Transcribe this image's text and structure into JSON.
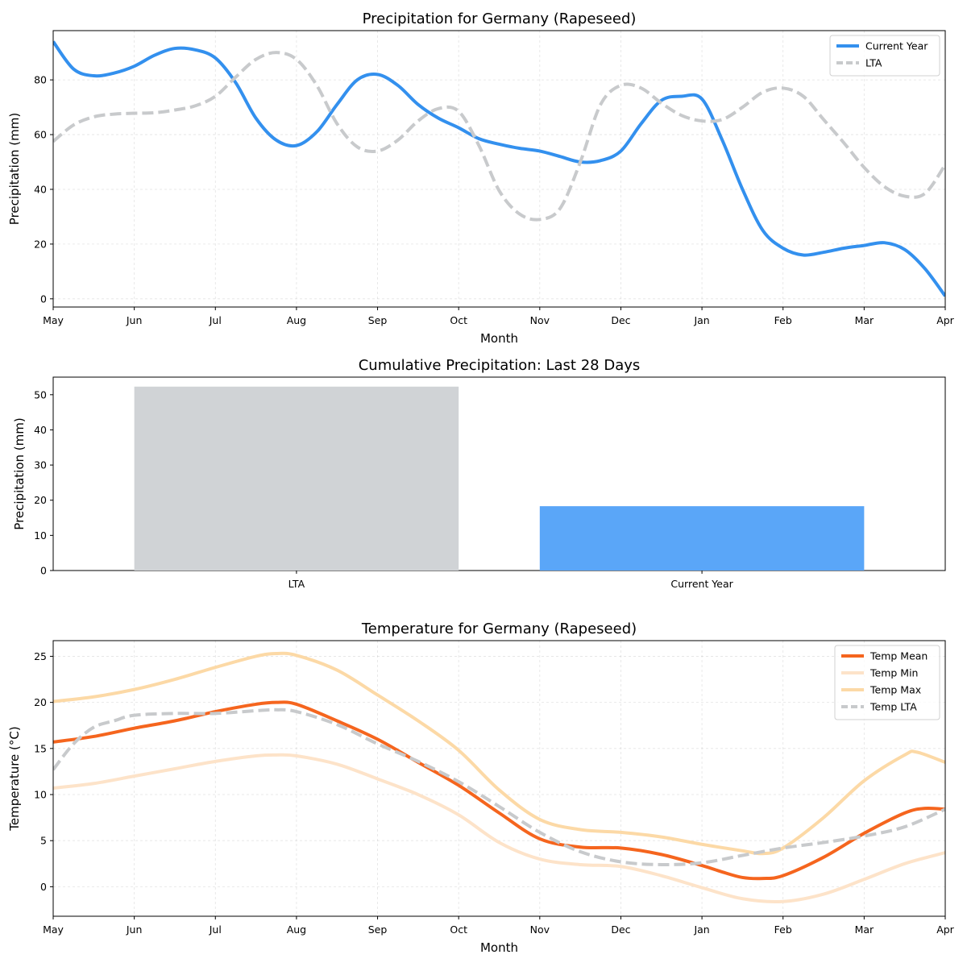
{
  "chart_data": [
    {
      "type": "line",
      "title": "Precipitation for Germany (Rapeseed)",
      "xlabel": "Month",
      "ylabel": "Precipitation (mm)",
      "x_ticks": [
        "May",
        "Jun",
        "Jul",
        "Aug",
        "Sep",
        "Oct",
        "Nov",
        "Dec",
        "Jan",
        "Feb",
        "Mar",
        "Apr"
      ],
      "xlim": [
        0,
        11
      ],
      "ylim": [
        -3,
        98
      ],
      "y_ticks": [
        0,
        20,
        40,
        60,
        80
      ],
      "grid": true,
      "legend_position": "top-right",
      "series": [
        {
          "name": "Current Year",
          "color": "#3390ee",
          "dash": "solid",
          "width": 4,
          "x": [
            0,
            0.25,
            0.5,
            0.75,
            1,
            1.25,
            1.5,
            1.75,
            2,
            2.25,
            2.5,
            2.75,
            3,
            3.25,
            3.5,
            3.75,
            4,
            4.25,
            4.5,
            4.75,
            5,
            5.25,
            5.5,
            5.75,
            6,
            6.25,
            6.5,
            6.75,
            7,
            7.25,
            7.5,
            7.75,
            8,
            8.25,
            8.5,
            8.75,
            9,
            9.25,
            9.5,
            9.75,
            10,
            10.25,
            10.5,
            10.75,
            11
          ],
          "y": [
            94,
            84,
            81.5,
            82.5,
            85,
            89,
            91.5,
            91,
            88,
            79,
            66,
            58,
            56,
            61,
            71,
            80,
            82,
            78,
            71,
            66,
            62.5,
            58.5,
            56.5,
            55,
            54,
            52,
            50,
            50.5,
            54,
            64,
            72.5,
            74,
            73,
            58,
            40,
            25,
            18.5,
            16,
            17,
            18.5,
            19.5,
            20.5,
            18,
            11,
            1
          ]
        },
        {
          "name": "LTA",
          "color": "#c8cacc",
          "dash": "dashed",
          "width": 4,
          "x": [
            0,
            0.25,
            0.5,
            0.75,
            1,
            1.25,
            1.5,
            1.75,
            2,
            2.25,
            2.5,
            2.75,
            3,
            3.25,
            3.5,
            3.75,
            4,
            4.25,
            4.5,
            4.75,
            5,
            5.25,
            5.5,
            5.75,
            6,
            6.25,
            6.5,
            6.75,
            7,
            7.25,
            7.5,
            7.75,
            8,
            8.25,
            8.5,
            8.75,
            9,
            9.25,
            9.5,
            9.75,
            10,
            10.25,
            10.5,
            10.75,
            11
          ],
          "y": [
            57.5,
            63.5,
            66.5,
            67.5,
            67.8,
            68,
            69,
            70.5,
            74,
            81,
            87.5,
            90,
            87.5,
            78,
            64,
            55.5,
            54,
            58,
            65,
            69.5,
            68.5,
            56,
            39.5,
            31,
            29,
            33,
            50,
            71,
            78,
            77,
            71.5,
            67,
            65,
            65.5,
            70,
            75.5,
            77,
            74,
            65.5,
            57,
            48,
            41,
            37.5,
            38.5,
            49
          ]
        }
      ]
    },
    {
      "type": "bar",
      "title": "Cumulative Precipitation: Last 28 Days",
      "xlabel": "",
      "ylabel": "Precipitation (mm)",
      "categories": [
        "LTA",
        "Current Year"
      ],
      "values": [
        52.3,
        18.3
      ],
      "colors": [
        "#d0d3d6",
        "#5aa6f8"
      ],
      "ylim": [
        0,
        55
      ],
      "y_ticks": [
        0,
        10,
        20,
        30,
        40,
        50
      ],
      "grid": false
    },
    {
      "type": "line",
      "title": "Temperature for Germany (Rapeseed)",
      "xlabel": "Month",
      "ylabel": "Temperature (°C)",
      "x_ticks": [
        "May",
        "Jun",
        "Jul",
        "Aug",
        "Sep",
        "Oct",
        "Nov",
        "Dec",
        "Jan",
        "Feb",
        "Mar",
        "Apr"
      ],
      "xlim": [
        0,
        11
      ],
      "ylim": [
        -3.2,
        26.7
      ],
      "y_ticks": [
        0,
        5,
        10,
        15,
        20,
        25
      ],
      "grid": true,
      "legend_position": "top-right",
      "series": [
        {
          "name": "Temp Mean",
          "color": "#f5651e",
          "dash": "solid",
          "width": 4,
          "x": [
            0,
            0.5,
            1,
            1.5,
            2,
            2.5,
            2.75,
            3,
            3.5,
            4,
            4.5,
            5,
            5.5,
            6,
            6.5,
            7,
            7.5,
            8,
            8.25,
            8.5,
            8.75,
            9,
            9.5,
            10,
            10.5,
            10.75,
            11
          ],
          "y": [
            15.7,
            16.3,
            17.2,
            18,
            19,
            19.8,
            20,
            19.8,
            18,
            16,
            13.5,
            11,
            8,
            5.2,
            4.3,
            4.2,
            3.5,
            2.3,
            1.6,
            1,
            0.9,
            1.2,
            3.2,
            5.8,
            8,
            8.5,
            8.4
          ]
        },
        {
          "name": "Temp Min",
          "color": "#fde3c9",
          "dash": "solid",
          "width": 4,
          "x": [
            0,
            0.5,
            1,
            1.5,
            2,
            2.5,
            2.75,
            3,
            3.5,
            4,
            4.5,
            5,
            5.5,
            6,
            6.5,
            7,
            7.5,
            8,
            8.5,
            9,
            9.5,
            10,
            10.5,
            11
          ],
          "y": [
            10.7,
            11.2,
            12,
            12.8,
            13.6,
            14.2,
            14.3,
            14.2,
            13.3,
            11.7,
            10,
            7.8,
            4.8,
            3,
            2.4,
            2.2,
            1.2,
            -0.1,
            -1.3,
            -1.6,
            -0.8,
            0.8,
            2.5,
            3.7
          ]
        },
        {
          "name": "Temp Max",
          "color": "#fcd9a6",
          "dash": "solid",
          "width": 4,
          "x": [
            0,
            0.5,
            1,
            1.5,
            2,
            2.5,
            2.75,
            3,
            3.5,
            4,
            4.5,
            5,
            5.5,
            6,
            6.5,
            7,
            7.5,
            8,
            8.5,
            8.75,
            9,
            9.5,
            10,
            10.5,
            10.65,
            11
          ],
          "y": [
            20.1,
            20.6,
            21.4,
            22.5,
            23.8,
            25,
            25.3,
            25.1,
            23.5,
            20.8,
            18,
            14.8,
            10.5,
            7.3,
            6.2,
            5.9,
            5.4,
            4.6,
            3.9,
            3.6,
            4.2,
            7.5,
            11.5,
            14.3,
            14.6,
            13.5
          ]
        },
        {
          "name": "Temp LTA",
          "color": "#c8cacc",
          "dash": "dashed",
          "width": 4,
          "x": [
            0,
            0.25,
            0.5,
            0.75,
            1,
            1.5,
            2,
            2.5,
            2.75,
            3,
            3.5,
            4,
            4.5,
            5,
            5.5,
            6,
            6.5,
            7,
            7.5,
            8,
            8.5,
            9,
            9.5,
            10,
            10.5,
            11
          ],
          "y": [
            12.7,
            15.5,
            17.3,
            18,
            18.6,
            18.8,
            18.8,
            19.1,
            19.2,
            19,
            17.6,
            15.5,
            13.6,
            11.4,
            8.7,
            5.9,
            3.8,
            2.7,
            2.4,
            2.6,
            3.4,
            4.2,
            4.8,
            5.5,
            6.5,
            8.4
          ]
        }
      ]
    }
  ]
}
